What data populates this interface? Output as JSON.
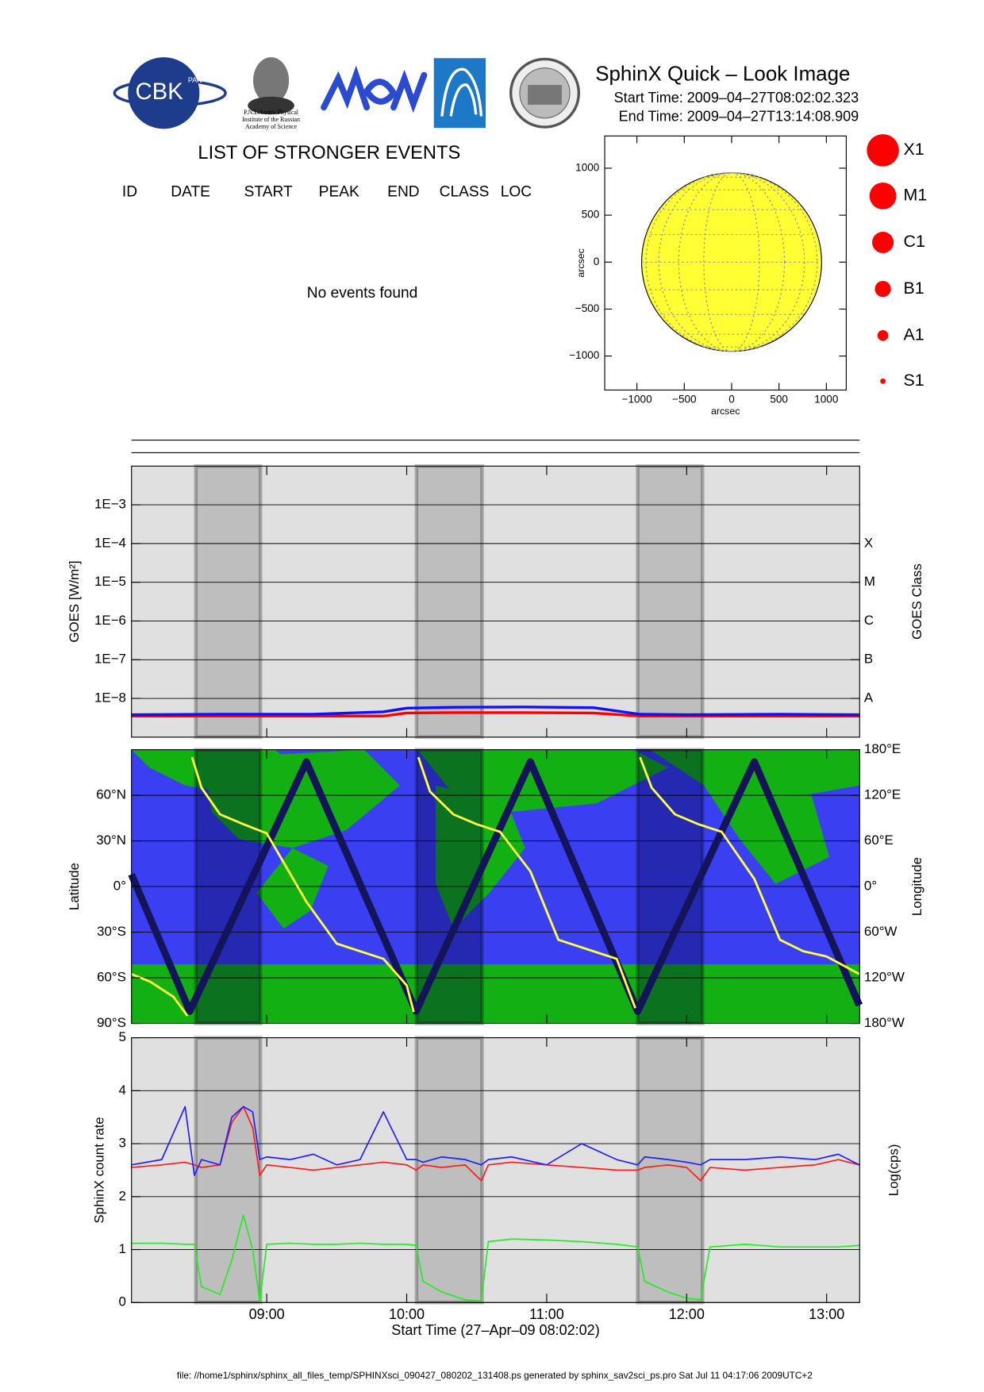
{
  "header": {
    "title": "SphinX Quick – Look Image",
    "start_time": "Start Time: 2009–04–27T08:02:02.323",
    "end_time": "End Time: 2009–04–27T13:14:08.909",
    "logo_texts": [
      "CBK",
      "PAN",
      "P.N.Lebedev Physical",
      "Institute of the Russian",
      "Academy of Science"
    ]
  },
  "events": {
    "title": "LIST OF STRONGER EVENTS",
    "columns": [
      "ID",
      "DATE",
      "START",
      "PEAK",
      "END",
      "CLASS",
      "LOC"
    ],
    "message": "No events found"
  },
  "flare_classes": [
    "X1",
    "M1",
    "C1",
    "B1",
    "A1",
    "S1"
  ],
  "footer": "file: //home1/sphinx/sphinx_all_files_temp/SPHINXsci_090427_080202_131408.ps generated by sphinx_sav2sci_ps.pro Sat Jul 11 04:17:06 2009UTC+2",
  "chart_data": [
    {
      "type": "disk",
      "x_label": "arcsec",
      "y_label": "arcsec",
      "disk_radius": 950,
      "color": "#ffff33",
      "xlim": [
        -1340,
        1210
      ],
      "ylim": [
        -1362,
        1343
      ],
      "xticks": [
        {
          "value": -1000,
          "label": "−1000"
        },
        {
          "value": -500,
          "label": "−500"
        },
        0,
        500,
        1000
      ],
      "yticks": [
        {
          "value": -1000,
          "label": "−1000"
        },
        {
          "value": -500,
          "label": "−500"
        },
        0,
        500,
        1000
      ]
    },
    {
      "type": "line",
      "y_label": "GOES [W/m²]",
      "y2_label": "GOES Class",
      "log_y": true,
      "grid": true,
      "x": [
        482,
        520,
        560,
        590,
        600,
        620,
        650,
        680,
        700,
        720,
        760,
        794
      ],
      "xlim": [
        482.03,
        794.15
      ],
      "ylim": [
        1e-09,
        0.01
      ],
      "yticks": [
        {
          "value": 1e-08,
          "label": "1E−8"
        },
        {
          "value": 1e-07,
          "label": "1E−7"
        },
        {
          "value": 1e-06,
          "label": "1E−6"
        },
        {
          "value": 1e-05,
          "label": "1E−5"
        },
        {
          "value": 0.0001,
          "label": "1E−4"
        },
        {
          "value": 0.001,
          "label": "1E−3"
        }
      ],
      "y2lim": [
        1e-09,
        0.01
      ],
      "y2ticks": [
        {
          "value": 1e-08,
          "label": "A"
        },
        {
          "value": 1e-07,
          "label": "B"
        },
        {
          "value": 1e-06,
          "label": "C"
        },
        {
          "value": 1e-05,
          "label": "M"
        },
        {
          "value": 0.0001,
          "label": "X"
        }
      ],
      "series": [
        {
          "color": "#ff0000",
          "values": [
            3.5e-09,
            3.5e-09,
            3.5e-09,
            3.5e-09,
            4.2e-09,
            4.3e-09,
            4.3e-09,
            4.2e-09,
            3.5e-09,
            3.5e-09,
            3.5e-09,
            3.5e-09
          ]
        },
        {
          "color": "#1010ff",
          "values": [
            3.8e-09,
            3.9e-09,
            3.9e-09,
            4.5e-09,
            5.6e-09,
            5.9e-09,
            6e-09,
            5.8e-09,
            3.9e-09,
            3.8e-09,
            3.9e-09,
            3.8e-09
          ]
        }
      ]
    },
    {
      "type": "line",
      "y_label": "Latitude",
      "y2_label": "Longitude",
      "grid": true,
      "x": [
        482,
        490,
        500,
        506,
        507,
        508,
        512,
        520,
        530,
        540,
        557,
        570,
        580,
        590,
        600,
        603,
        604,
        605,
        610,
        620,
        630,
        640,
        653,
        665,
        680,
        690,
        698,
        699,
        700,
        705,
        715,
        725,
        735,
        749,
        760,
        770,
        780,
        794
      ],
      "xlim": [
        482.03,
        794.15
      ],
      "ylim": [
        -90,
        90
      ],
      "yticks": [
        {
          "value": -90,
          "label": "90°S"
        },
        {
          "value": -60,
          "label": "60°S"
        },
        {
          "value": -30,
          "label": "30°S"
        },
        {
          "value": 0,
          "label": "0°"
        },
        {
          "value": 30,
          "label": "30°N"
        },
        {
          "value": 60,
          "label": "60°N"
        }
      ],
      "y2lim": [
        -180,
        180
      ],
      "y2ticks": [
        {
          "value": -180,
          "label": "180°W"
        },
        {
          "value": -120,
          "label": "120°W"
        },
        {
          "value": -60,
          "label": "60°W"
        },
        {
          "value": 0,
          "label": "0°"
        },
        {
          "value": 60,
          "label": "60°E"
        },
        {
          "value": 120,
          "label": "120°E"
        },
        {
          "value": 180,
          "label": "180°E"
        }
      ],
      "series": [
        {
          "color": "#14145a",
          "values": [
            8,
            -20.8,
            -56.8,
            -78.4,
            -82,
            -78.7,
            -65.6,
            -39.4,
            -6.6,
            26.2,
            82,
            36.6,
            1.7,
            -33.1,
            -68,
            -78.5,
            -82,
            -78.7,
            -61.9,
            -28.5,
            5,
            38.5,
            82,
            39.2,
            -14.3,
            -49.9,
            -78.4,
            -82,
            -78.7,
            -62.3,
            -29.4,
            3.4,
            36.2,
            82,
            42.9,
            7.3,
            -28.2,
            -78
          ]
        },
        {
          "color": "#ffff40",
          "axis": "y2",
          "values": [
            -115,
            -125,
            -145,
            -170,
            null,
            170,
            130,
            95,
            82,
            70,
            -20,
            -75,
            -85,
            -95,
            -130,
            -165,
            null,
            170,
            125,
            95,
            82,
            72,
            20,
            -70,
            -85,
            -95,
            -160,
            null,
            170,
            130,
            95,
            82,
            72,
            10,
            -70,
            -85,
            -92,
            -115
          ]
        }
      ]
    },
    {
      "type": "line",
      "y_label": "SphinX count rate",
      "y2_label": "Log(cps)",
      "x_label": "Start Time (27–Apr–09 08:02:02)",
      "grid": true,
      "x": [
        482,
        495,
        505,
        509,
        512,
        520,
        525,
        530,
        534,
        537,
        540,
        550,
        560,
        570,
        580,
        590,
        600,
        604,
        607,
        615,
        625,
        632,
        635,
        645,
        660,
        675,
        690,
        699,
        702,
        712,
        720,
        726,
        730,
        745,
        760,
        775,
        785,
        794
      ],
      "xlim": [
        482.03,
        794.15
      ],
      "xticks": [
        {
          "value": 540,
          "label": "09:00"
        },
        {
          "value": 600,
          "label": "10:00"
        },
        {
          "value": 660,
          "label": "11:00"
        },
        {
          "value": 720,
          "label": "12:00"
        },
        {
          "value": 780,
          "label": "13:00"
        }
      ],
      "ylim": [
        0,
        5
      ],
      "yticks": [
        0,
        1,
        2,
        3,
        4,
        5
      ],
      "shaded": [
        [
          509.6,
          537.3
        ],
        [
          604.2,
          632.3
        ],
        [
          699,
          726.8
        ]
      ],
      "series": [
        {
          "color": "#ff1a1a",
          "values": [
            2.55,
            2.6,
            2.65,
            2.6,
            2.55,
            2.6,
            3.4,
            3.7,
            3.3,
            2.4,
            2.6,
            2.55,
            2.5,
            2.55,
            2.6,
            2.65,
            2.6,
            2.5,
            2.6,
            2.55,
            2.6,
            2.3,
            2.6,
            2.65,
            2.6,
            2.55,
            2.5,
            2.5,
            2.55,
            2.6,
            2.55,
            2.3,
            2.55,
            2.5,
            2.55,
            2.6,
            2.7,
            2.6
          ]
        },
        {
          "color": "#2020ff",
          "values": [
            2.6,
            2.7,
            3.7,
            2.4,
            2.7,
            2.6,
            3.5,
            3.7,
            3.6,
            2.7,
            2.75,
            2.7,
            2.8,
            2.6,
            2.7,
            3.6,
            2.7,
            2.7,
            2.65,
            2.75,
            2.7,
            2.6,
            2.7,
            2.75,
            2.6,
            3.0,
            2.7,
            2.6,
            2.75,
            2.7,
            2.65,
            2.6,
            2.7,
            2.7,
            2.75,
            2.7,
            2.8,
            2.6
          ]
        },
        {
          "color": "#22ee22",
          "values": [
            1.12,
            1.12,
            1.1,
            1.1,
            0.3,
            0.15,
            0.8,
            1.65,
            1.0,
            0.02,
            1.1,
            1.12,
            1.1,
            1.1,
            1.12,
            1.1,
            1.1,
            1.08,
            0.4,
            0.2,
            0.05,
            0.03,
            1.15,
            1.2,
            1.18,
            1.15,
            1.1,
            1.05,
            0.4,
            0.2,
            0.08,
            0.05,
            1.05,
            1.1,
            1.05,
            1.05,
            1.05,
            1.08
          ]
        }
      ]
    }
  ]
}
